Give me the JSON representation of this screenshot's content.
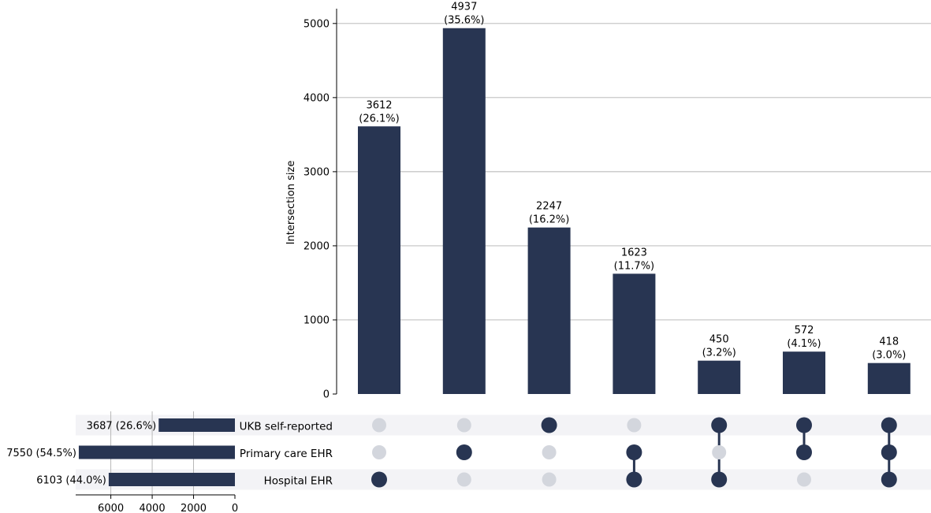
{
  "chart_data": {
    "type": "bar",
    "subtype": "upset",
    "ylabel": "Intersection size",
    "ylim": [
      0,
      5200
    ],
    "yticks": [
      0,
      1000,
      2000,
      3000,
      4000,
      5000
    ],
    "grid": true,
    "sets": [
      {
        "name": "UKB self-reported",
        "size": 3687,
        "label": "3687 (26.6%)"
      },
      {
        "name": "Primary care EHR",
        "size": 7550,
        "label": "7550 (54.5%)"
      },
      {
        "name": "Hospital EHR",
        "size": 6103,
        "label": "6103 (44.0%)"
      }
    ],
    "set_size_ticks": [
      6000,
      4000,
      2000,
      0
    ],
    "set_size_xlim": [
      0,
      7700
    ],
    "intersections": [
      {
        "members": [
          "Hospital EHR"
        ],
        "value": 3612,
        "label": "3612",
        "pct": "(26.1%)"
      },
      {
        "members": [
          "Primary care EHR"
        ],
        "value": 4937,
        "label": "4937",
        "pct": "(35.6%)"
      },
      {
        "members": [
          "UKB self-reported"
        ],
        "value": 2247,
        "label": "2247",
        "pct": "(16.2%)"
      },
      {
        "members": [
          "Primary care EHR",
          "Hospital EHR"
        ],
        "value": 1623,
        "label": "1623",
        "pct": "(11.7%)"
      },
      {
        "members": [
          "UKB self-reported",
          "Hospital EHR"
        ],
        "value": 450,
        "label": "450",
        "pct": "(3.2%)"
      },
      {
        "members": [
          "UKB self-reported",
          "Primary care EHR"
        ],
        "value": 572,
        "label": "572",
        "pct": "(4.1%)"
      },
      {
        "members": [
          "UKB self-reported",
          "Primary care EHR",
          "Hospital EHR"
        ],
        "value": 418,
        "label": "418",
        "pct": "(3.0%)"
      }
    ],
    "colors": {
      "bar": "#283552",
      "dot_active": "#283552",
      "dot_inactive": "#d3d6dd",
      "stripe": "#f3f3f6",
      "grid": "#b0b0b0"
    }
  }
}
